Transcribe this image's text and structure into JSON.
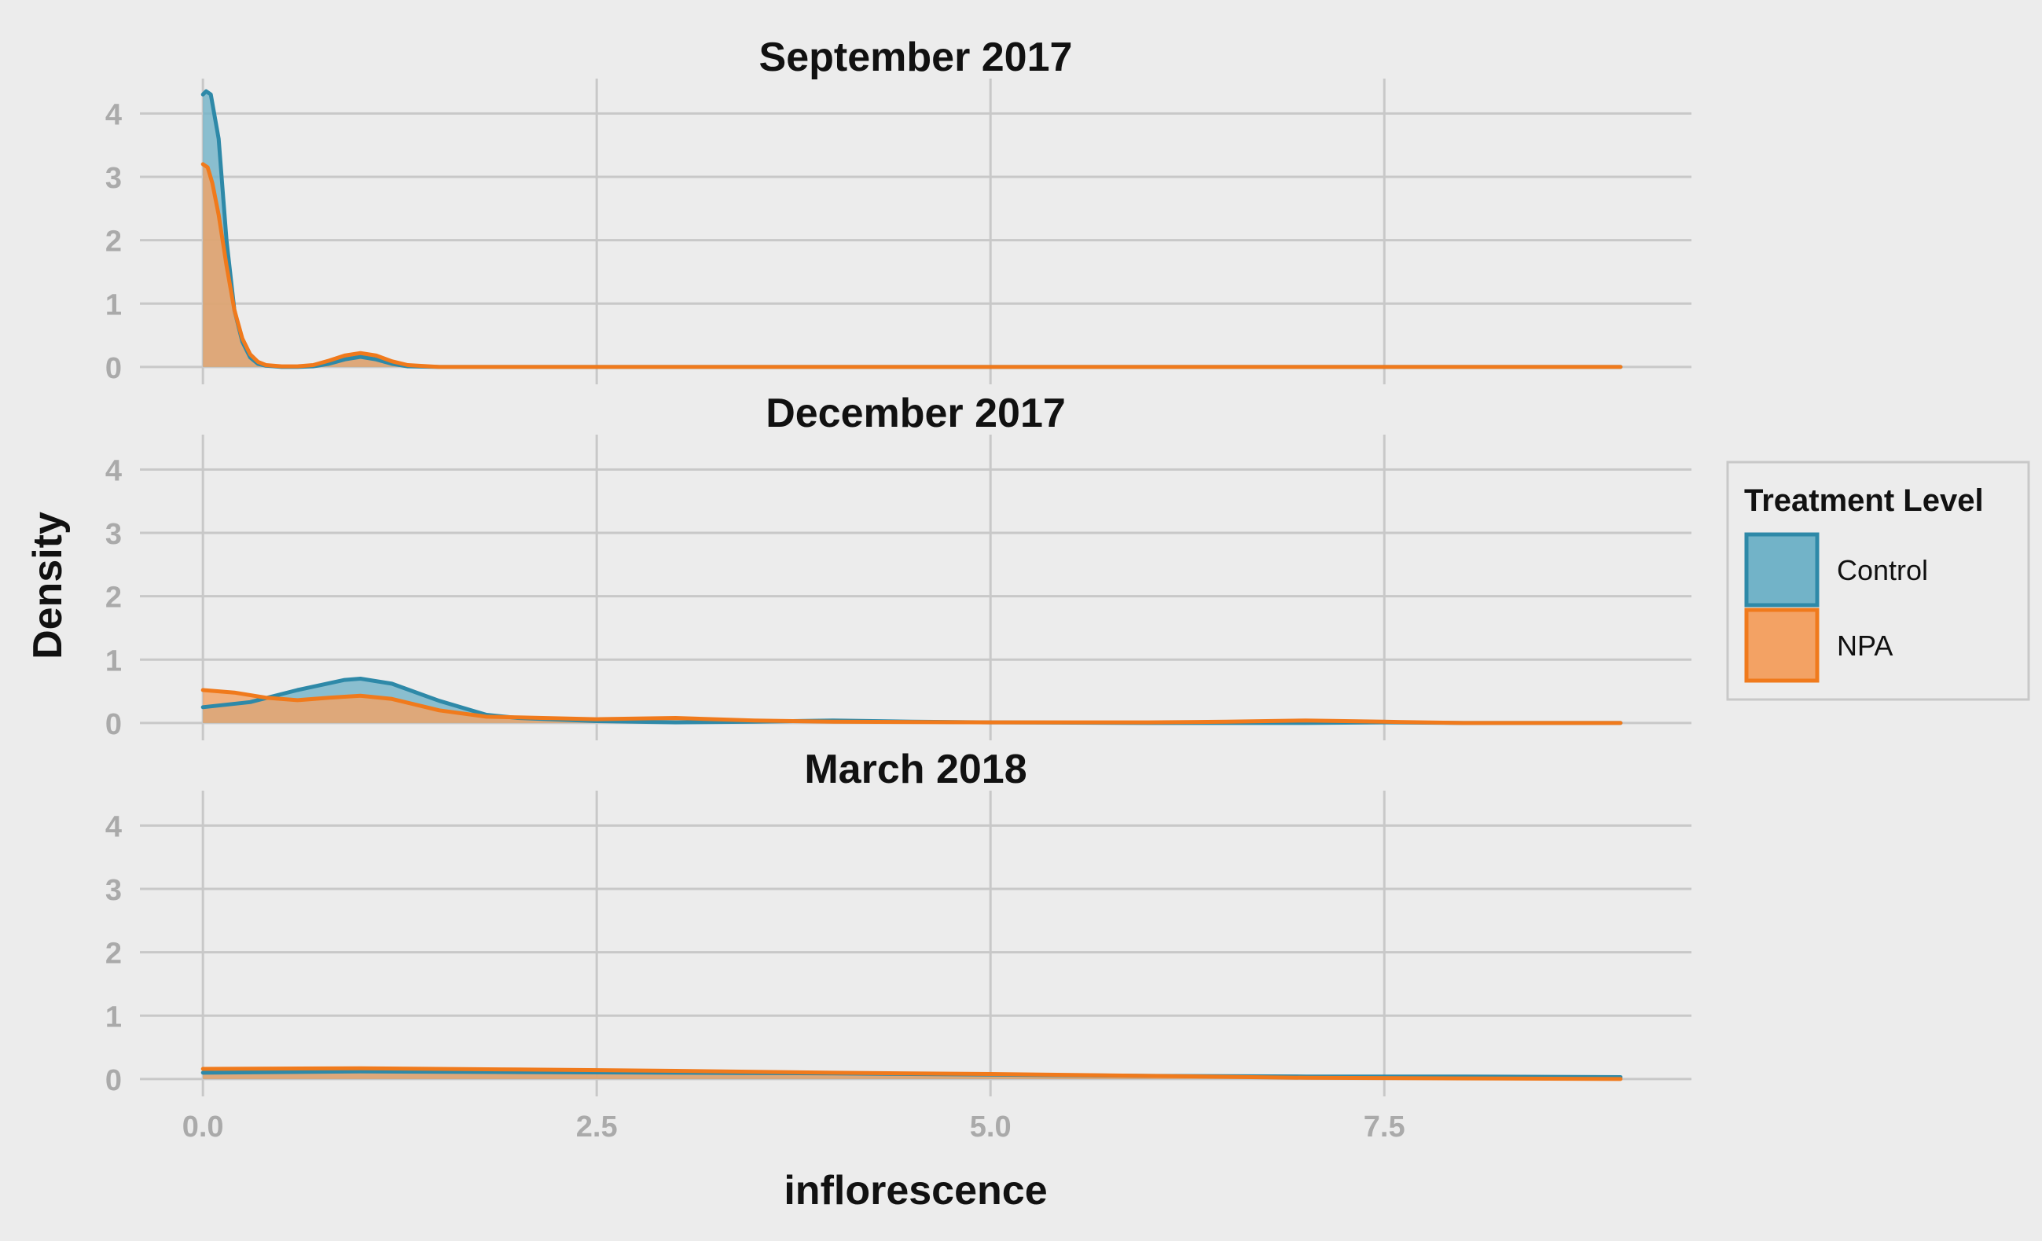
{
  "chart_data": {
    "type": "area",
    "chart_kind": "faceted density plot",
    "xlabel": "inflorescence",
    "ylabel": "Density",
    "xlim": [
      -0.4,
      9.45
    ],
    "ylim": [
      -0.1,
      4.55
    ],
    "x_ticks": [
      0.0,
      2.5,
      5.0,
      7.5
    ],
    "x_tick_labels": [
      "0.0",
      "2.5",
      "5.0",
      "7.5"
    ],
    "y_ticks": [
      0,
      1,
      2,
      3,
      4
    ],
    "y_tick_labels": [
      "0",
      "1",
      "2",
      "3",
      "4"
    ],
    "grid": true,
    "legend": {
      "title": "Treatment Level",
      "placement": "right",
      "entries": [
        "Control",
        "NPA"
      ]
    },
    "colors": {
      "background": "#ececec",
      "grid": "#c8c8c8",
      "tick_text": "#aaaaaa",
      "title_text": "#111111",
      "Control_line": "#2e89a8",
      "Control_fill": "#72b3c8",
      "NPA_line": "#f07a1c",
      "NPA_fill": "#f3a264",
      "legend_border": "#c8c8c8"
    },
    "panels": [
      {
        "title": "September 2017",
        "series": [
          {
            "name": "Control",
            "x": [
              0,
              0.02,
              0.05,
              0.1,
              0.15,
              0.2,
              0.25,
              0.3,
              0.35,
              0.4,
              0.5,
              0.6,
              0.7,
              0.8,
              0.9,
              1.0,
              1.1,
              1.2,
              1.3,
              1.5,
              2.0,
              3.0,
              5.0,
              7.0,
              9.0
            ],
            "y": [
              4.3,
              4.35,
              4.3,
              3.6,
              2.0,
              0.9,
              0.4,
              0.15,
              0.05,
              0.02,
              0.0,
              0.0,
              0.01,
              0.05,
              0.12,
              0.16,
              0.12,
              0.05,
              0.01,
              0.0,
              0.0,
              0.0,
              0.0,
              0.0,
              0.0
            ]
          },
          {
            "name": "NPA",
            "x": [
              0,
              0.03,
              0.06,
              0.1,
              0.15,
              0.2,
              0.25,
              0.3,
              0.35,
              0.4,
              0.5,
              0.6,
              0.7,
              0.8,
              0.9,
              1.0,
              1.1,
              1.2,
              1.3,
              1.5,
              2.0,
              3.0,
              5.0,
              7.0,
              9.0
            ],
            "y": [
              3.2,
              3.15,
              2.9,
              2.4,
              1.6,
              0.9,
              0.45,
              0.2,
              0.08,
              0.03,
              0.01,
              0.01,
              0.03,
              0.1,
              0.18,
              0.22,
              0.18,
              0.09,
              0.03,
              0.0,
              0.0,
              0.0,
              0.0,
              0.0,
              0.0
            ]
          }
        ]
      },
      {
        "title": "December 2017",
        "series": [
          {
            "name": "Control",
            "x": [
              0,
              0.3,
              0.6,
              0.9,
              1.0,
              1.2,
              1.5,
              1.8,
              2.0,
              2.5,
              3.0,
              3.5,
              4.0,
              4.5,
              5.0,
              6.0,
              7.0,
              7.5,
              8.0,
              9.0
            ],
            "y": [
              0.25,
              0.33,
              0.52,
              0.68,
              0.7,
              0.62,
              0.35,
              0.13,
              0.08,
              0.03,
              0.01,
              0.02,
              0.04,
              0.02,
              0.01,
              0.0,
              0.0,
              0.01,
              0.0,
              0.0
            ]
          },
          {
            "name": "NPA",
            "x": [
              0,
              0.2,
              0.4,
              0.6,
              0.8,
              1.0,
              1.2,
              1.5,
              1.8,
              2.0,
              2.5,
              3.0,
              3.5,
              4.0,
              5.0,
              6.0,
              6.5,
              7.0,
              7.5,
              8.0,
              9.0
            ],
            "y": [
              0.52,
              0.48,
              0.4,
              0.36,
              0.4,
              0.43,
              0.38,
              0.2,
              0.1,
              0.09,
              0.06,
              0.08,
              0.04,
              0.02,
              0.01,
              0.01,
              0.02,
              0.04,
              0.02,
              0.0,
              0.0
            ]
          }
        ]
      },
      {
        "title": "March 2018",
        "series": [
          {
            "name": "Control",
            "x": [
              0,
              1,
              2,
              3,
              4,
              5,
              6,
              7,
              8,
              9
            ],
            "y": [
              0.1,
              0.12,
              0.11,
              0.1,
              0.09,
              0.07,
              0.05,
              0.04,
              0.04,
              0.03
            ]
          },
          {
            "name": "NPA",
            "x": [
              0,
              1,
              2,
              3,
              4,
              5,
              6,
              7,
              8,
              9
            ],
            "y": [
              0.16,
              0.17,
              0.15,
              0.13,
              0.1,
              0.08,
              0.05,
              0.02,
              0.01,
              0.0
            ]
          }
        ]
      }
    ]
  }
}
